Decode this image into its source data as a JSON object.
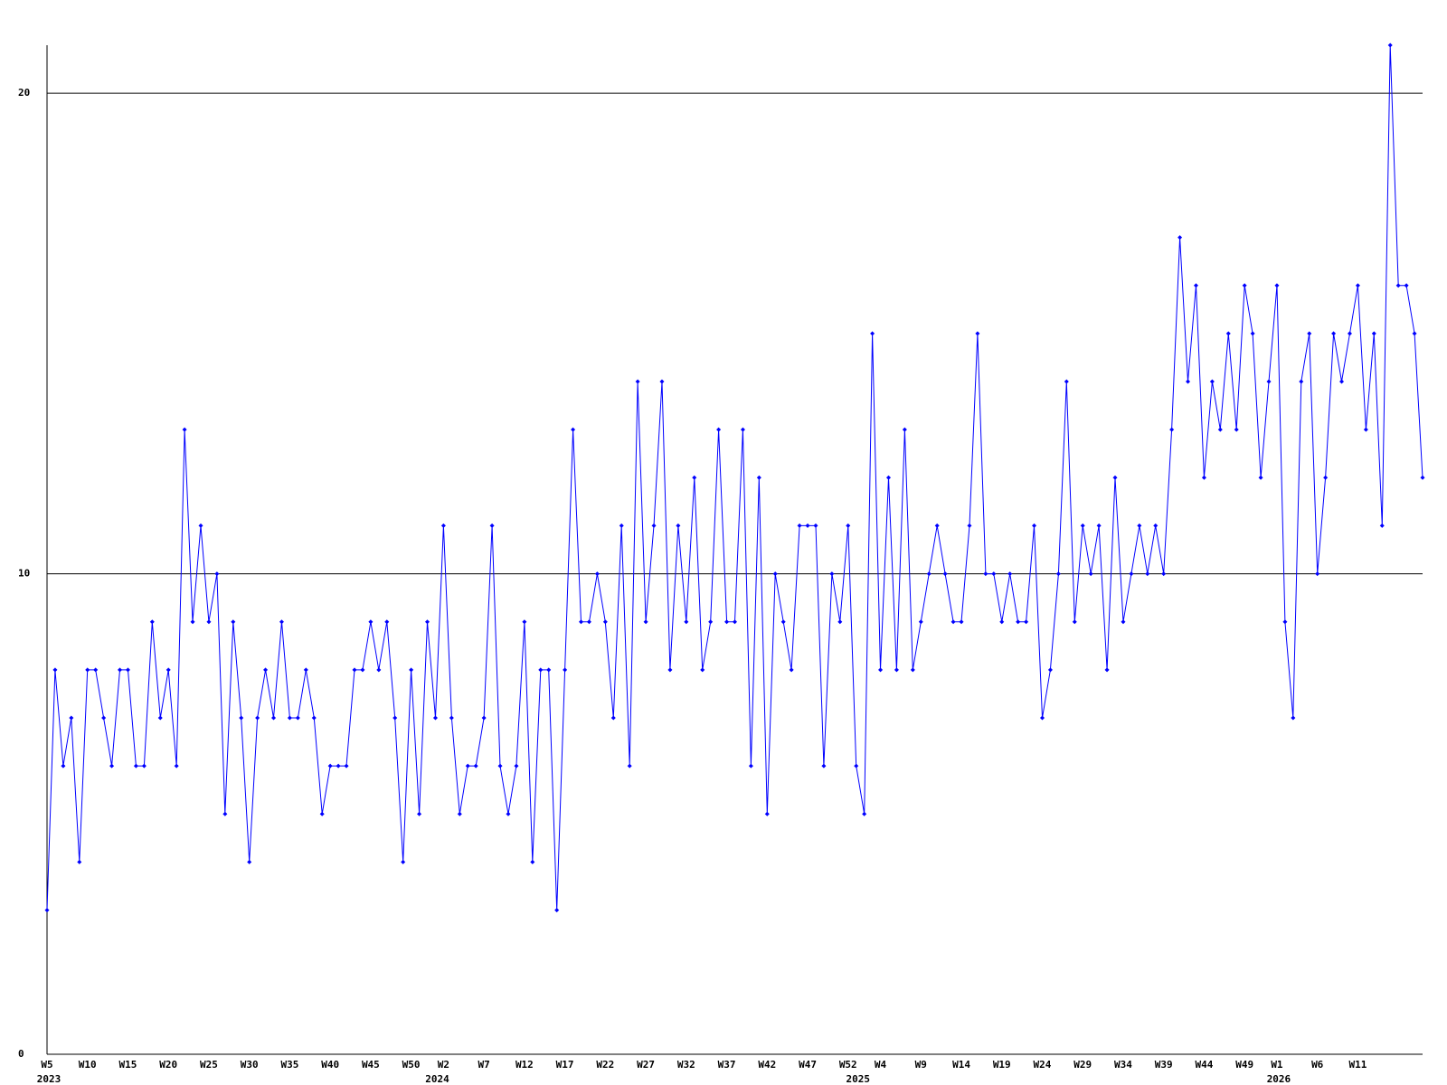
{
  "chart_data": {
    "type": "line",
    "categories": [
      "W5",
      null,
      null,
      null,
      null,
      "W10",
      null,
      null,
      null,
      null,
      "W15",
      null,
      null,
      null,
      null,
      "W20",
      null,
      null,
      null,
      null,
      "W25",
      null,
      null,
      null,
      null,
      "W30",
      null,
      null,
      null,
      null,
      "W35",
      null,
      null,
      null,
      null,
      "W40",
      null,
      null,
      null,
      null,
      "W45",
      null,
      null,
      null,
      null,
      "W50",
      null,
      null,
      null,
      "W2",
      null,
      null,
      null,
      null,
      "W7",
      null,
      null,
      null,
      null,
      "W12",
      null,
      null,
      null,
      null,
      "W17",
      null,
      null,
      null,
      null,
      "W22",
      null,
      null,
      null,
      null,
      "W27",
      null,
      null,
      null,
      null,
      "W32",
      null,
      null,
      null,
      null,
      "W37",
      null,
      null,
      null,
      null,
      "W42",
      null,
      null,
      null,
      null,
      "W47",
      null,
      null,
      null,
      null,
      "W52",
      null,
      null,
      null,
      "W4",
      null,
      null,
      null,
      null,
      "W9",
      null,
      null,
      null,
      null,
      "W14",
      null,
      null,
      null,
      null,
      "W19",
      null,
      null,
      null,
      null,
      "W24",
      null,
      null,
      null,
      null,
      "W29",
      null,
      null,
      null,
      null,
      "W34",
      null,
      null,
      null,
      null,
      "W39",
      null,
      null,
      null,
      null,
      "W44",
      null,
      null,
      null,
      null,
      "W49",
      null,
      null,
      null,
      "W1",
      null,
      null,
      null,
      null,
      "W6",
      null,
      null,
      null,
      null,
      "W11",
      null,
      null,
      null,
      null,
      null,
      null,
      null,
      null
    ],
    "years": [
      "2023",
      null,
      null,
      null,
      null,
      null,
      null,
      null,
      null,
      null,
      null,
      null,
      null,
      null,
      null,
      null,
      null,
      null,
      null,
      null,
      null,
      null,
      null,
      null,
      null,
      null,
      null,
      null,
      null,
      null,
      null,
      null,
      null,
      null,
      null,
      null,
      null,
      null,
      null,
      null,
      null,
      null,
      null,
      null,
      null,
      null,
      null,
      null,
      "2024",
      null,
      null,
      null,
      null,
      null,
      null,
      null,
      null,
      null,
      null,
      null,
      null,
      null,
      null,
      null,
      null,
      null,
      null,
      null,
      null,
      null,
      null,
      null,
      null,
      null,
      null,
      null,
      null,
      null,
      null,
      null,
      null,
      null,
      null,
      null,
      null,
      null,
      null,
      null,
      null,
      null,
      null,
      null,
      null,
      null,
      null,
      null,
      null,
      null,
      null,
      null,
      "2025",
      null,
      null,
      null,
      null,
      null,
      null,
      null,
      null,
      null,
      null,
      null,
      null,
      null,
      null,
      null,
      null,
      null,
      null,
      null,
      null,
      null,
      null,
      null,
      null,
      null,
      null,
      null,
      null,
      null,
      null,
      null,
      null,
      null,
      null,
      null,
      null,
      null,
      null,
      null,
      null,
      null,
      null,
      null,
      null,
      null,
      null,
      null,
      null,
      null,
      null,
      null,
      "2026",
      null,
      null,
      null,
      null,
      null,
      null,
      null,
      null,
      null,
      null,
      null,
      null,
      null,
      null,
      null,
      null,
      null,
      null
    ],
    "series": [
      {
        "color": "#0000ff",
        "values": [
          3,
          8,
          6,
          7,
          4,
          8,
          8,
          7,
          6,
          8,
          8,
          6,
          6,
          9,
          7,
          8,
          6,
          13,
          9,
          11,
          9,
          10,
          5,
          9,
          7,
          4,
          7,
          8,
          7,
          9,
          7,
          7,
          8,
          7,
          5,
          6,
          6,
          6,
          8,
          8,
          9,
          8,
          9,
          7,
          4,
          8,
          5,
          9,
          7,
          11,
          7,
          5,
          6,
          6,
          7,
          11,
          6,
          5,
          6,
          9,
          4,
          8,
          8,
          3,
          8,
          13,
          9,
          9,
          10,
          9,
          7,
          11,
          6,
          14,
          9,
          11,
          14,
          8,
          11,
          9,
          12,
          8,
          9,
          13,
          9,
          9,
          13,
          6,
          12,
          5,
          10,
          9,
          8,
          11,
          11,
          11,
          6,
          10,
          9,
          11,
          6,
          5,
          15,
          8,
          12,
          8,
          13,
          8,
          9,
          10,
          11,
          10,
          9,
          9,
          11,
          15,
          10,
          10,
          9,
          10,
          9,
          9,
          11,
          7,
          8,
          10,
          14,
          9,
          11,
          10,
          11,
          8,
          12,
          9,
          10,
          11,
          10,
          11,
          10,
          13,
          17,
          14,
          16,
          12,
          14,
          13,
          15,
          13,
          16,
          15,
          12,
          14,
          16,
          9,
          7,
          14,
          15,
          10,
          12,
          15,
          14,
          15,
          16,
          13,
          15,
          11,
          21,
          16,
          16,
          15,
          12
        ]
      }
    ],
    "ylim": [
      0,
      21
    ],
    "yticks": [
      0,
      10,
      20
    ],
    "grid": true
  }
}
